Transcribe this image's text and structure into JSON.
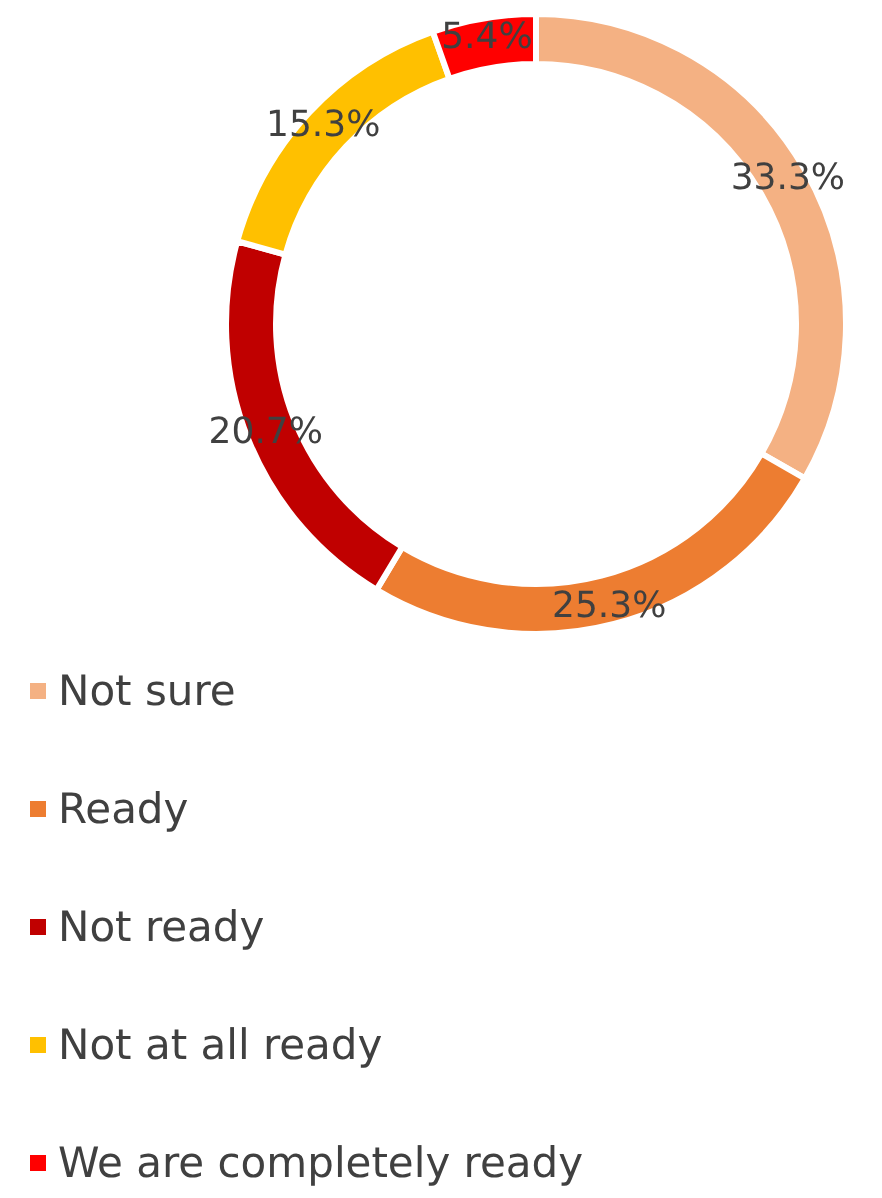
{
  "chart_data": {
    "type": "donut",
    "categories": [
      "Not sure",
      "Ready",
      "Not ready",
      "Not at all ready",
      "We are completely ready"
    ],
    "values": [
      33.3,
      25.3,
      20.7,
      15.3,
      5.4
    ],
    "colors": [
      "#f4b183",
      "#ed7d31",
      "#c00000",
      "#ffc000",
      "#ff0000"
    ],
    "value_labels": [
      "33.3%",
      "25.3%",
      "20.7%",
      "15.3%",
      "5.4%"
    ],
    "legend": "bottom left"
  }
}
